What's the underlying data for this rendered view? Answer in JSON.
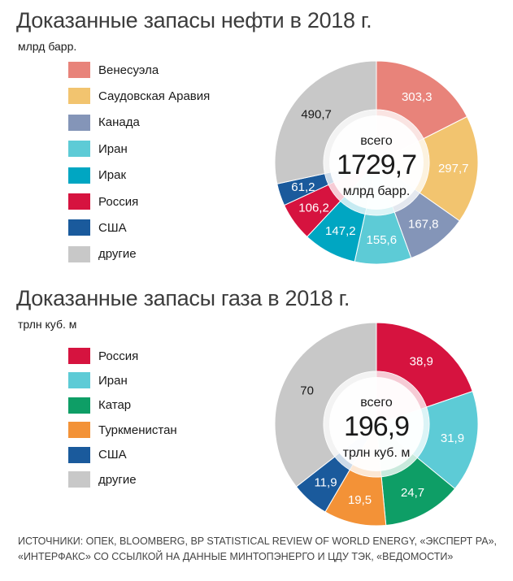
{
  "charts": {
    "oil": {
      "title": "Доказанные запасы нефти в 2018 г.",
      "unit": "млрд барр.",
      "center": {
        "label_top": "всего",
        "total": "1729,7",
        "label_bottom": "млрд барр."
      }
    },
    "gas": {
      "title": "Доказанные запасы газа в 2018 г.",
      "unit": "трлн  куб. м",
      "center": {
        "label_top": "всего",
        "total": "196,9",
        "label_bottom": "трлн  куб. м"
      }
    }
  },
  "sources": "Источники: ОПЕК, Bloomberg, BP Statistical Review of World Energy, «Эксперт РА», «Интерфакс» со ссылкой на данные Минтопэнерго и ЦДУ ТЭК, «Ведомости»",
  "chart_data": [
    {
      "type": "pie",
      "title": "Доказанные запасы нефти в 2018 г.",
      "unit": "млрд барр.",
      "total": 1729.7,
      "legend_placement": "left",
      "categories": [
        "Венесуэла",
        "Саудовская Аравия",
        "Канада",
        "Иран",
        "Ирак",
        "Россия",
        "США",
        "другие"
      ],
      "values": [
        303.3,
        297.7,
        167.8,
        155.6,
        147.2,
        106.2,
        61.2,
        490.7
      ],
      "labels": [
        "303,3",
        "297,7",
        "167,8",
        "155,6",
        "147,2",
        "106,2",
        "61,2",
        "490,7"
      ],
      "colors": [
        "#e8837a",
        "#f2c46f",
        "#8495b8",
        "#5dcbd6",
        "#00a6c2",
        "#d6133f",
        "#1a5a9c",
        "#c8c8c8"
      ]
    },
    {
      "type": "pie",
      "title": "Доказанные запасы газа в 2018 г.",
      "unit": "трлн  куб. м",
      "total": 196.9,
      "legend_placement": "left",
      "categories": [
        "Россия",
        "Иран",
        "Катар",
        "Туркменистан",
        "США",
        "другие"
      ],
      "values": [
        38.9,
        31.9,
        24.7,
        19.5,
        11.9,
        70
      ],
      "labels": [
        "38,9",
        "31,9",
        "24,7",
        "19,5",
        "11,9",
        "70"
      ],
      "colors": [
        "#d6133f",
        "#5dcbd6",
        "#0e9e66",
        "#f39237",
        "#1a5a9c",
        "#c8c8c8"
      ]
    }
  ]
}
